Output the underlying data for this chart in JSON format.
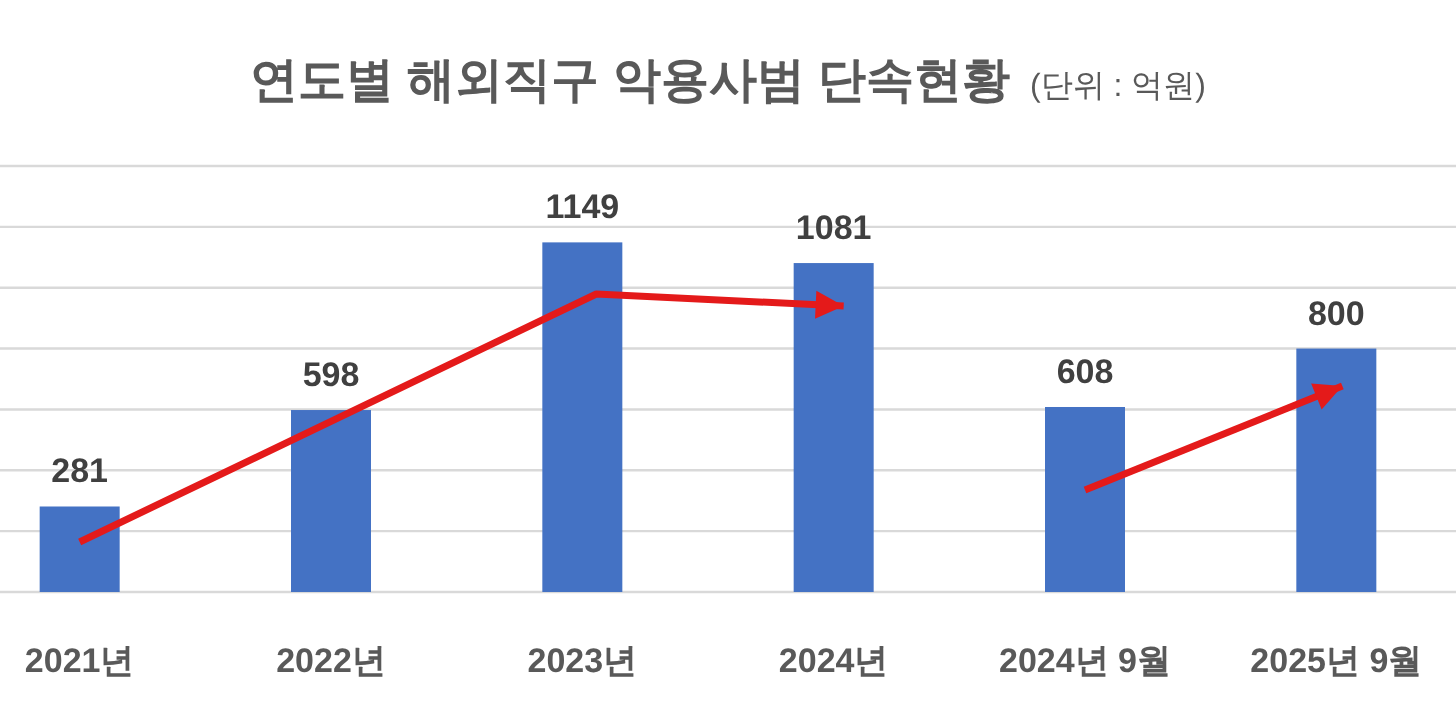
{
  "chart_data": {
    "type": "bar",
    "title": "연도별 해외직구 악용사범 단속현황",
    "subtitle": "(단위 : 억원)",
    "categories": [
      "2021년",
      "2022년",
      "2023년",
      "2024년",
      "2024년 9월",
      "2025년 9월"
    ],
    "values": [
      281,
      598,
      1149,
      1081,
      608,
      800
    ],
    "color": "#4472c4",
    "ylim": [
      0,
      1400
    ],
    "yticks": [
      {
        "value": 0,
        "label": null
      },
      {
        "value": 200,
        "label": null
      },
      {
        "value": 400,
        "label": null
      },
      {
        "value": 600,
        "label": null
      },
      {
        "value": 800,
        "label": null
      },
      {
        "value": 1000,
        "label": null
      },
      {
        "value": 1200,
        "label": null
      },
      {
        "value": 1400,
        "label": null
      }
    ],
    "tick_labels": "x",
    "grid": "y",
    "data_labels": true
  }
}
